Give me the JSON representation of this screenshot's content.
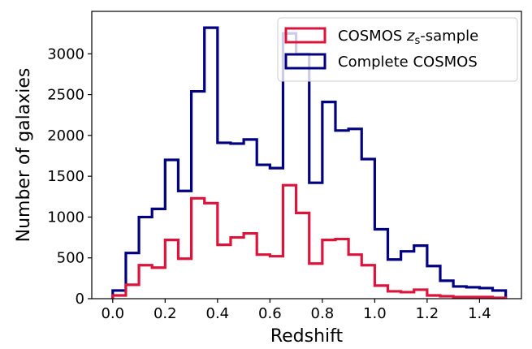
{
  "chart_data": {
    "type": "histogram",
    "xlabel": "Redshift",
    "ylabel": "Number of galaxies",
    "xlim": [
      -0.08,
      1.56
    ],
    "ylim": [
      0,
      3520
    ],
    "bin_width": 0.05,
    "bin_edges": [
      0.0,
      0.05,
      0.1,
      0.15,
      0.2,
      0.25,
      0.3,
      0.35,
      0.4,
      0.45,
      0.5,
      0.55,
      0.6,
      0.65,
      0.7,
      0.75,
      0.8,
      0.85,
      0.9,
      0.95,
      1.0,
      1.05,
      1.1,
      1.15,
      1.2,
      1.25,
      1.3,
      1.35,
      1.4,
      1.45,
      1.5
    ],
    "x_ticks": [
      {
        "value": 0.0,
        "label": "0.0"
      },
      {
        "value": 0.2,
        "label": "0.2"
      },
      {
        "value": 0.4,
        "label": "0.4"
      },
      {
        "value": 0.6,
        "label": "0.6"
      },
      {
        "value": 0.8,
        "label": "0.8"
      },
      {
        "value": 1.0,
        "label": "1.0"
      },
      {
        "value": 1.2,
        "label": "1.2"
      },
      {
        "value": 1.4,
        "label": "1.4"
      }
    ],
    "y_ticks": [
      {
        "value": 0,
        "label": "0"
      },
      {
        "value": 500,
        "label": "500"
      },
      {
        "value": 1000,
        "label": "1000"
      },
      {
        "value": 1500,
        "label": "1500"
      },
      {
        "value": 2000,
        "label": "2000"
      },
      {
        "value": 2500,
        "label": "2500"
      },
      {
        "value": 3000,
        "label": "3000"
      }
    ],
    "series": [
      {
        "name_prefix": "COSMOS ",
        "name_math": "z",
        "name_sub": "s",
        "name_suffix": "-sample",
        "color": "#dc143c",
        "values": [
          40,
          170,
          410,
          380,
          720,
          490,
          1230,
          1170,
          660,
          750,
          800,
          540,
          520,
          1390,
          1050,
          430,
          720,
          730,
          540,
          410,
          160,
          90,
          80,
          110,
          40,
          30,
          20,
          20,
          20,
          10
        ]
      },
      {
        "name": "Complete COSMOS",
        "color": "#000080",
        "values": [
          100,
          560,
          1000,
          1100,
          1700,
          1320,
          2540,
          3320,
          1910,
          1900,
          1950,
          1640,
          1600,
          3250,
          3000,
          1420,
          2410,
          2060,
          2080,
          1710,
          850,
          480,
          580,
          650,
          400,
          220,
          150,
          140,
          130,
          100
        ]
      }
    ],
    "legend_position": "upper-right",
    "grid": false
  }
}
